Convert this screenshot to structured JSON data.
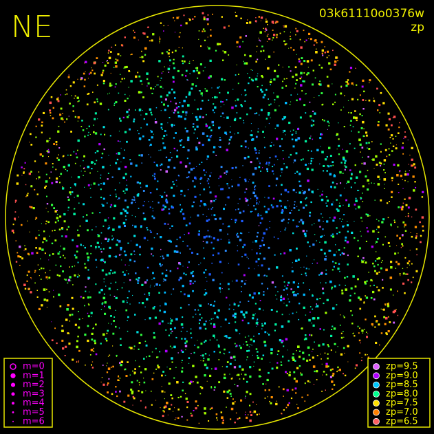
{
  "header": {
    "corner": "NE",
    "frame_id": "03k61110o0376w",
    "mode": "zp"
  },
  "magnitude_legend": {
    "color": "#ff00ff",
    "items": [
      "m=0",
      "m=1",
      "m=2",
      "m=3",
      "m=4",
      "m=5",
      "m=6"
    ]
  },
  "zp_legend": {
    "text_color": "#ffff00",
    "items": [
      {
        "label": "zp=9.5",
        "color": "#e060ff"
      },
      {
        "label": "zp=9.0",
        "color": "#b000ff"
      },
      {
        "label": "zp=8.5",
        "color": "#00c8ff"
      },
      {
        "label": "zp=8.0",
        "color": "#00ff90"
      },
      {
        "label": "zp=7.5",
        "color": "#ffe000"
      },
      {
        "label": "zp=7.0",
        "color": "#ff8000"
      },
      {
        "label": "zp=6.5",
        "color": "#ff6060"
      }
    ]
  }
}
